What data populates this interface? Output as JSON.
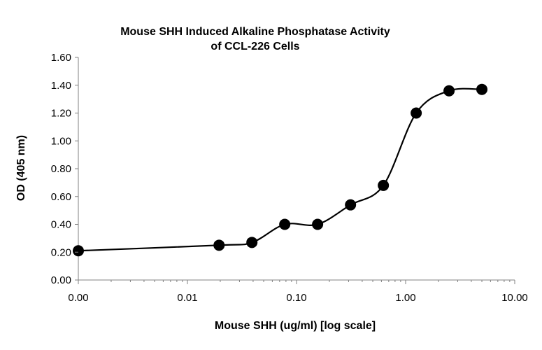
{
  "chart_data": {
    "type": "line",
    "title_lines": [
      "Mouse SHH Induced Alkaline Phosphatase Activity",
      "of CCL-226 Cells"
    ],
    "xlabel": "Mouse SHH (ug/ml) [log scale]",
    "ylabel": "OD (405 nm)",
    "x_scale": "log",
    "x_tick_labels": [
      "0.00",
      "0.01",
      "0.10",
      "1.00",
      "10.00"
    ],
    "y_tick_labels": [
      "0.00",
      "0.20",
      "0.40",
      "0.60",
      "0.80",
      "1.00",
      "1.20",
      "1.40",
      "1.60"
    ],
    "xlim": [
      0.001,
      10
    ],
    "ylim": [
      0,
      1.6
    ],
    "grid": false,
    "legend": "none",
    "series": [
      {
        "x": [
          0.001,
          0.0195,
          0.039,
          0.078,
          0.156,
          0.3125,
          0.625,
          1.25,
          2.5,
          5.0
        ],
        "y": [
          0.21,
          0.25,
          0.27,
          0.4,
          0.4,
          0.54,
          0.68,
          1.2,
          1.36,
          1.37
        ],
        "color": "#000000",
        "marker": "circle",
        "smooth": true
      }
    ]
  }
}
